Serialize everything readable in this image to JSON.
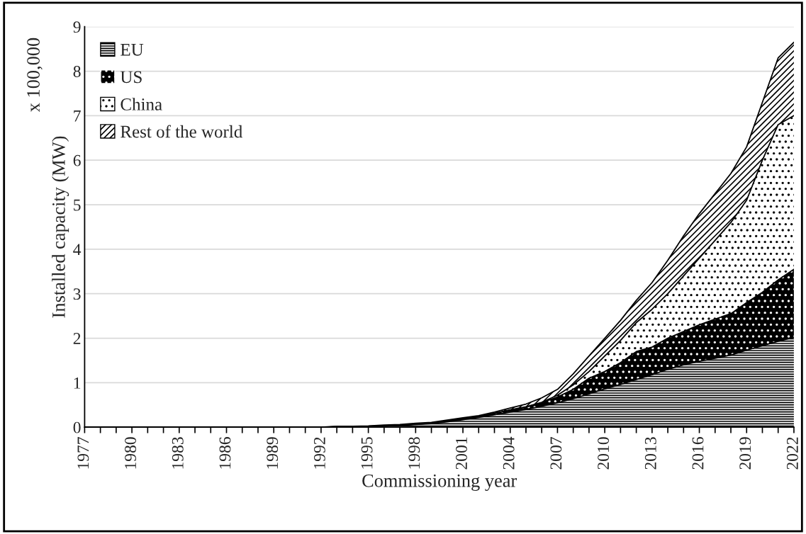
{
  "chart_data": {
    "type": "area",
    "stacked": true,
    "xlabel": "Commissioning year",
    "ylabel": "Installed capacity (MW)",
    "annotations": [
      "x 100,000"
    ],
    "categories": [
      "1977",
      null,
      null,
      "1980",
      null,
      null,
      "1983",
      null,
      null,
      "1986",
      null,
      null,
      "1989",
      null,
      null,
      "1992",
      null,
      null,
      "1995",
      null,
      null,
      "1998",
      null,
      null,
      "2001",
      null,
      null,
      "2004",
      null,
      null,
      "2007",
      null,
      null,
      "2010",
      null,
      null,
      "2013",
      null,
      null,
      "2016",
      null,
      null,
      "2019",
      null,
      null,
      "2022"
    ],
    "series": [
      {
        "name": "EU",
        "color": "#ffffff",
        "values": [
          0,
          0,
          0,
          0,
          0,
          0,
          0,
          0,
          0,
          0,
          0,
          0,
          0,
          0,
          0,
          0,
          0.01,
          0.01,
          0.02,
          0.03,
          0.04,
          0.06,
          0.08,
          0.12,
          0.17,
          0.22,
          0.28,
          0.34,
          0.4,
          0.47,
          0.55,
          0.64,
          0.75,
          0.86,
          0.96,
          1.07,
          1.18,
          1.3,
          1.4,
          1.48,
          1.55,
          1.62,
          1.73,
          1.83,
          1.93,
          2.02
        ]
      },
      {
        "name": "US",
        "color": "#000000",
        "values": [
          0,
          0,
          0,
          0,
          0,
          0,
          0,
          0,
          0,
          0,
          0,
          0,
          0,
          0,
          0,
          0,
          0,
          0,
          0,
          0,
          0,
          0.01,
          0.01,
          0.02,
          0.02,
          0.02,
          0.03,
          0.04,
          0.05,
          0.08,
          0.13,
          0.21,
          0.35,
          0.39,
          0.49,
          0.63,
          0.62,
          0.7,
          0.75,
          0.82,
          0.88,
          0.93,
          1.07,
          1.2,
          1.38,
          1.53
        ]
      },
      {
        "name": "China",
        "color": "#ffffff",
        "values": [
          0,
          0,
          0,
          0,
          0,
          0,
          0,
          0,
          0,
          0,
          0,
          0,
          0,
          0,
          0,
          0,
          0,
          0,
          0,
          0,
          0,
          0,
          0,
          0,
          0,
          0,
          0,
          0.01,
          0.01,
          0.01,
          0.04,
          0.1,
          0.15,
          0.35,
          0.5,
          0.65,
          0.85,
          1.0,
          1.25,
          1.5,
          1.77,
          2.05,
          2.3,
          2.97,
          3.49,
          3.45
        ]
      },
      {
        "name": "Rest of the world",
        "color": "#ffffff",
        "values": [
          0,
          0,
          0,
          0,
          0,
          0,
          0,
          0,
          0,
          0,
          0,
          0,
          0,
          0,
          0,
          0,
          0.01,
          0.01,
          0.01,
          0.02,
          0.02,
          0.02,
          0.02,
          0.02,
          0.02,
          0.02,
          0.03,
          0.04,
          0.06,
          0.1,
          0.13,
          0.25,
          0.35,
          0.4,
          0.45,
          0.5,
          0.6,
          0.75,
          0.9,
          1.0,
          1.05,
          1.1,
          1.2,
          1.3,
          1.5,
          1.65
        ]
      }
    ],
    "ylim": [
      0,
      9
    ],
    "yticks": [
      0,
      1,
      2,
      3,
      4,
      5,
      6,
      7,
      8,
      9
    ],
    "grid": "y",
    "legend": "top left"
  }
}
